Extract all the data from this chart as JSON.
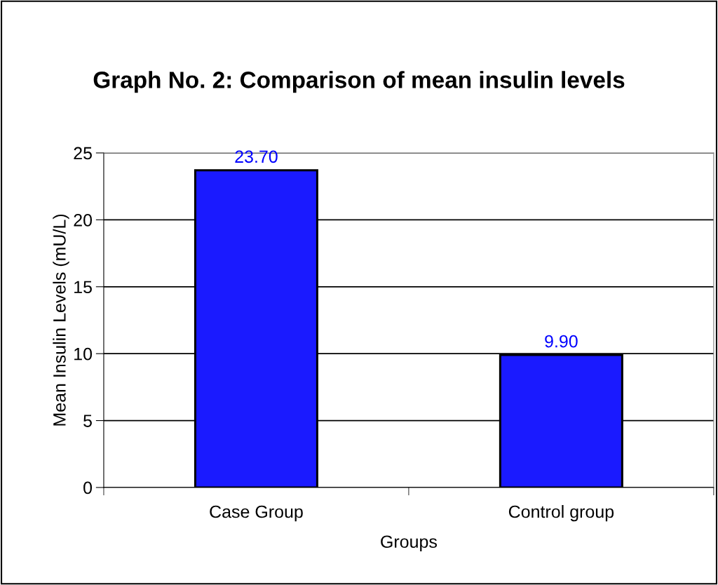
{
  "chart_data": {
    "type": "bar",
    "title": "Graph No. 2: Comparison of mean insulin levels",
    "xlabel": "Groups",
    "ylabel": "Mean Insulin Levels (mU/L)",
    "categories": [
      "Case Group",
      "Control group"
    ],
    "series": [
      {
        "color": "#1a1aff",
        "values": [
          23.7,
          9.9
        ],
        "value_labels": [
          "23.70",
          "9.90"
        ]
      }
    ],
    "ylim": [
      0,
      25
    ],
    "yticks": [
      0,
      5,
      10,
      15,
      20,
      25
    ],
    "grid": "y",
    "legend": false
  }
}
